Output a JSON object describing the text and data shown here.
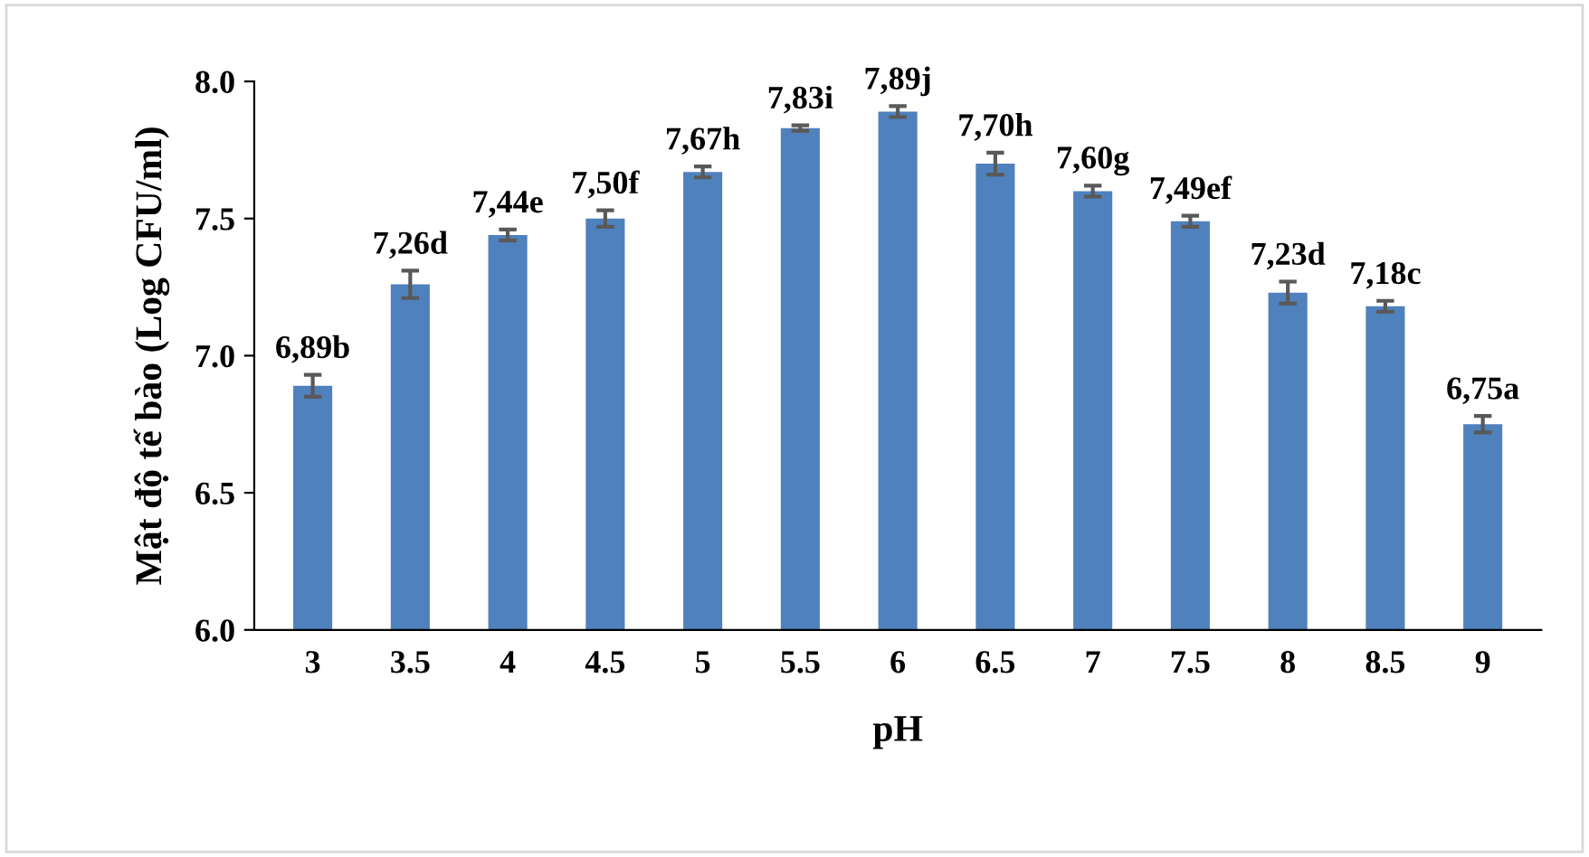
{
  "chart_data": {
    "type": "bar",
    "xlabel": "pH",
    "ylabel": "Mật độ tế bào (Log CFU/ml)",
    "categories": [
      "3",
      "3.5",
      "4",
      "4.5",
      "5",
      "5.5",
      "6",
      "6.5",
      "7",
      "7.5",
      "8",
      "8.5",
      "9"
    ],
    "values": [
      6.89,
      7.26,
      7.44,
      7.5,
      7.67,
      7.83,
      7.89,
      7.7,
      7.6,
      7.49,
      7.23,
      7.18,
      6.75
    ],
    "errors": [
      0.04,
      0.05,
      0.02,
      0.03,
      0.02,
      0.01,
      0.02,
      0.04,
      0.02,
      0.02,
      0.04,
      0.02,
      0.03
    ],
    "value_labels": [
      "6,89b",
      "7,26d",
      "7,44e",
      "7,50f",
      "7,67h",
      "7,83i",
      "7,89j",
      "7,70h",
      "7,60g",
      "7,49ef",
      "7,23d",
      "7,18c",
      "6,75a"
    ],
    "color": "#4f81bd",
    "ylim": [
      6.0,
      8.0
    ],
    "yticks": [
      {
        "value": 6.0,
        "label": "6.0"
      },
      {
        "value": 6.5,
        "label": "6.5"
      },
      {
        "value": 7.0,
        "label": "7.0"
      },
      {
        "value": 7.5,
        "label": "7.5"
      },
      {
        "value": 8.0,
        "label": "8.0"
      }
    ],
    "grid": false
  }
}
